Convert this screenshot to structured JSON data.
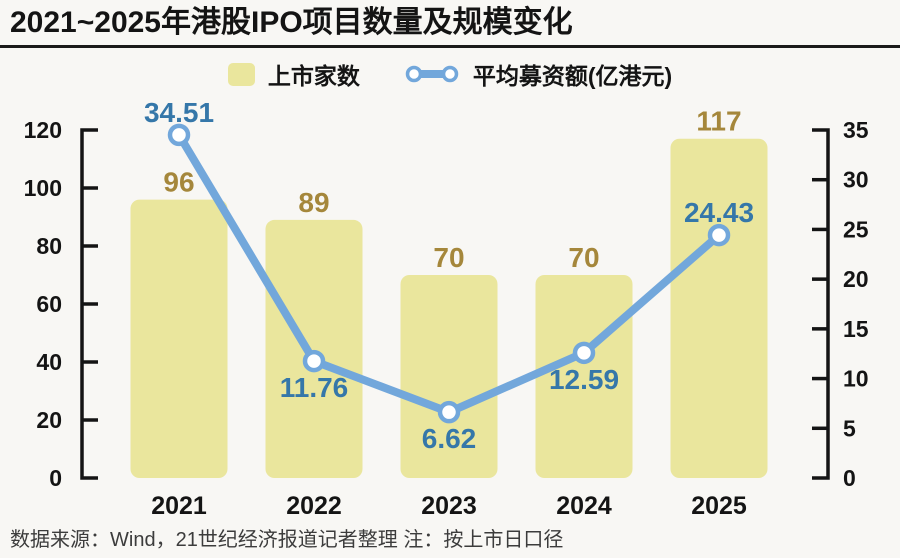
{
  "header": {
    "title": "2021~2025年港股IPO项目数量及规模变化"
  },
  "legend": {
    "items": [
      {
        "label": "上市家数"
      },
      {
        "label": "平均募资额(亿港元)"
      }
    ]
  },
  "chart_data": {
    "type": "bar+line",
    "title": "2021~2025年港股IPO项目数量及规模变化",
    "legend_position": "top",
    "grid": false,
    "categories": [
      "2021",
      "2022",
      "2023",
      "2024",
      "2025"
    ],
    "series": [
      {
        "name": "上市家数",
        "type": "bar",
        "axis": "left",
        "values": [
          96,
          89,
          70,
          70,
          117
        ],
        "color": "#EAE69D",
        "label_color": "#A5873B"
      },
      {
        "name": "平均募资额(亿港元)",
        "type": "line",
        "axis": "right",
        "values": [
          34.51,
          11.76,
          6.62,
          12.59,
          24.43
        ],
        "color": "#72A7DB",
        "marker": "open-circle",
        "label_color": "#3577A9"
      }
    ],
    "line_label_positions": [
      "above",
      "below",
      "below",
      "below",
      "above"
    ],
    "left_axis": {
      "range": [
        0,
        120
      ],
      "ticks": [
        0,
        20,
        40,
        60,
        80,
        100,
        120
      ]
    },
    "right_axis": {
      "range": [
        0,
        35
      ],
      "ticks": [
        0,
        5,
        10,
        15,
        20,
        25,
        30,
        35
      ]
    },
    "axis_color": "#141414"
  },
  "footer": {
    "note": "数据来源：Wind，21世纪经济报道记者整理  注：按上市日口径"
  }
}
